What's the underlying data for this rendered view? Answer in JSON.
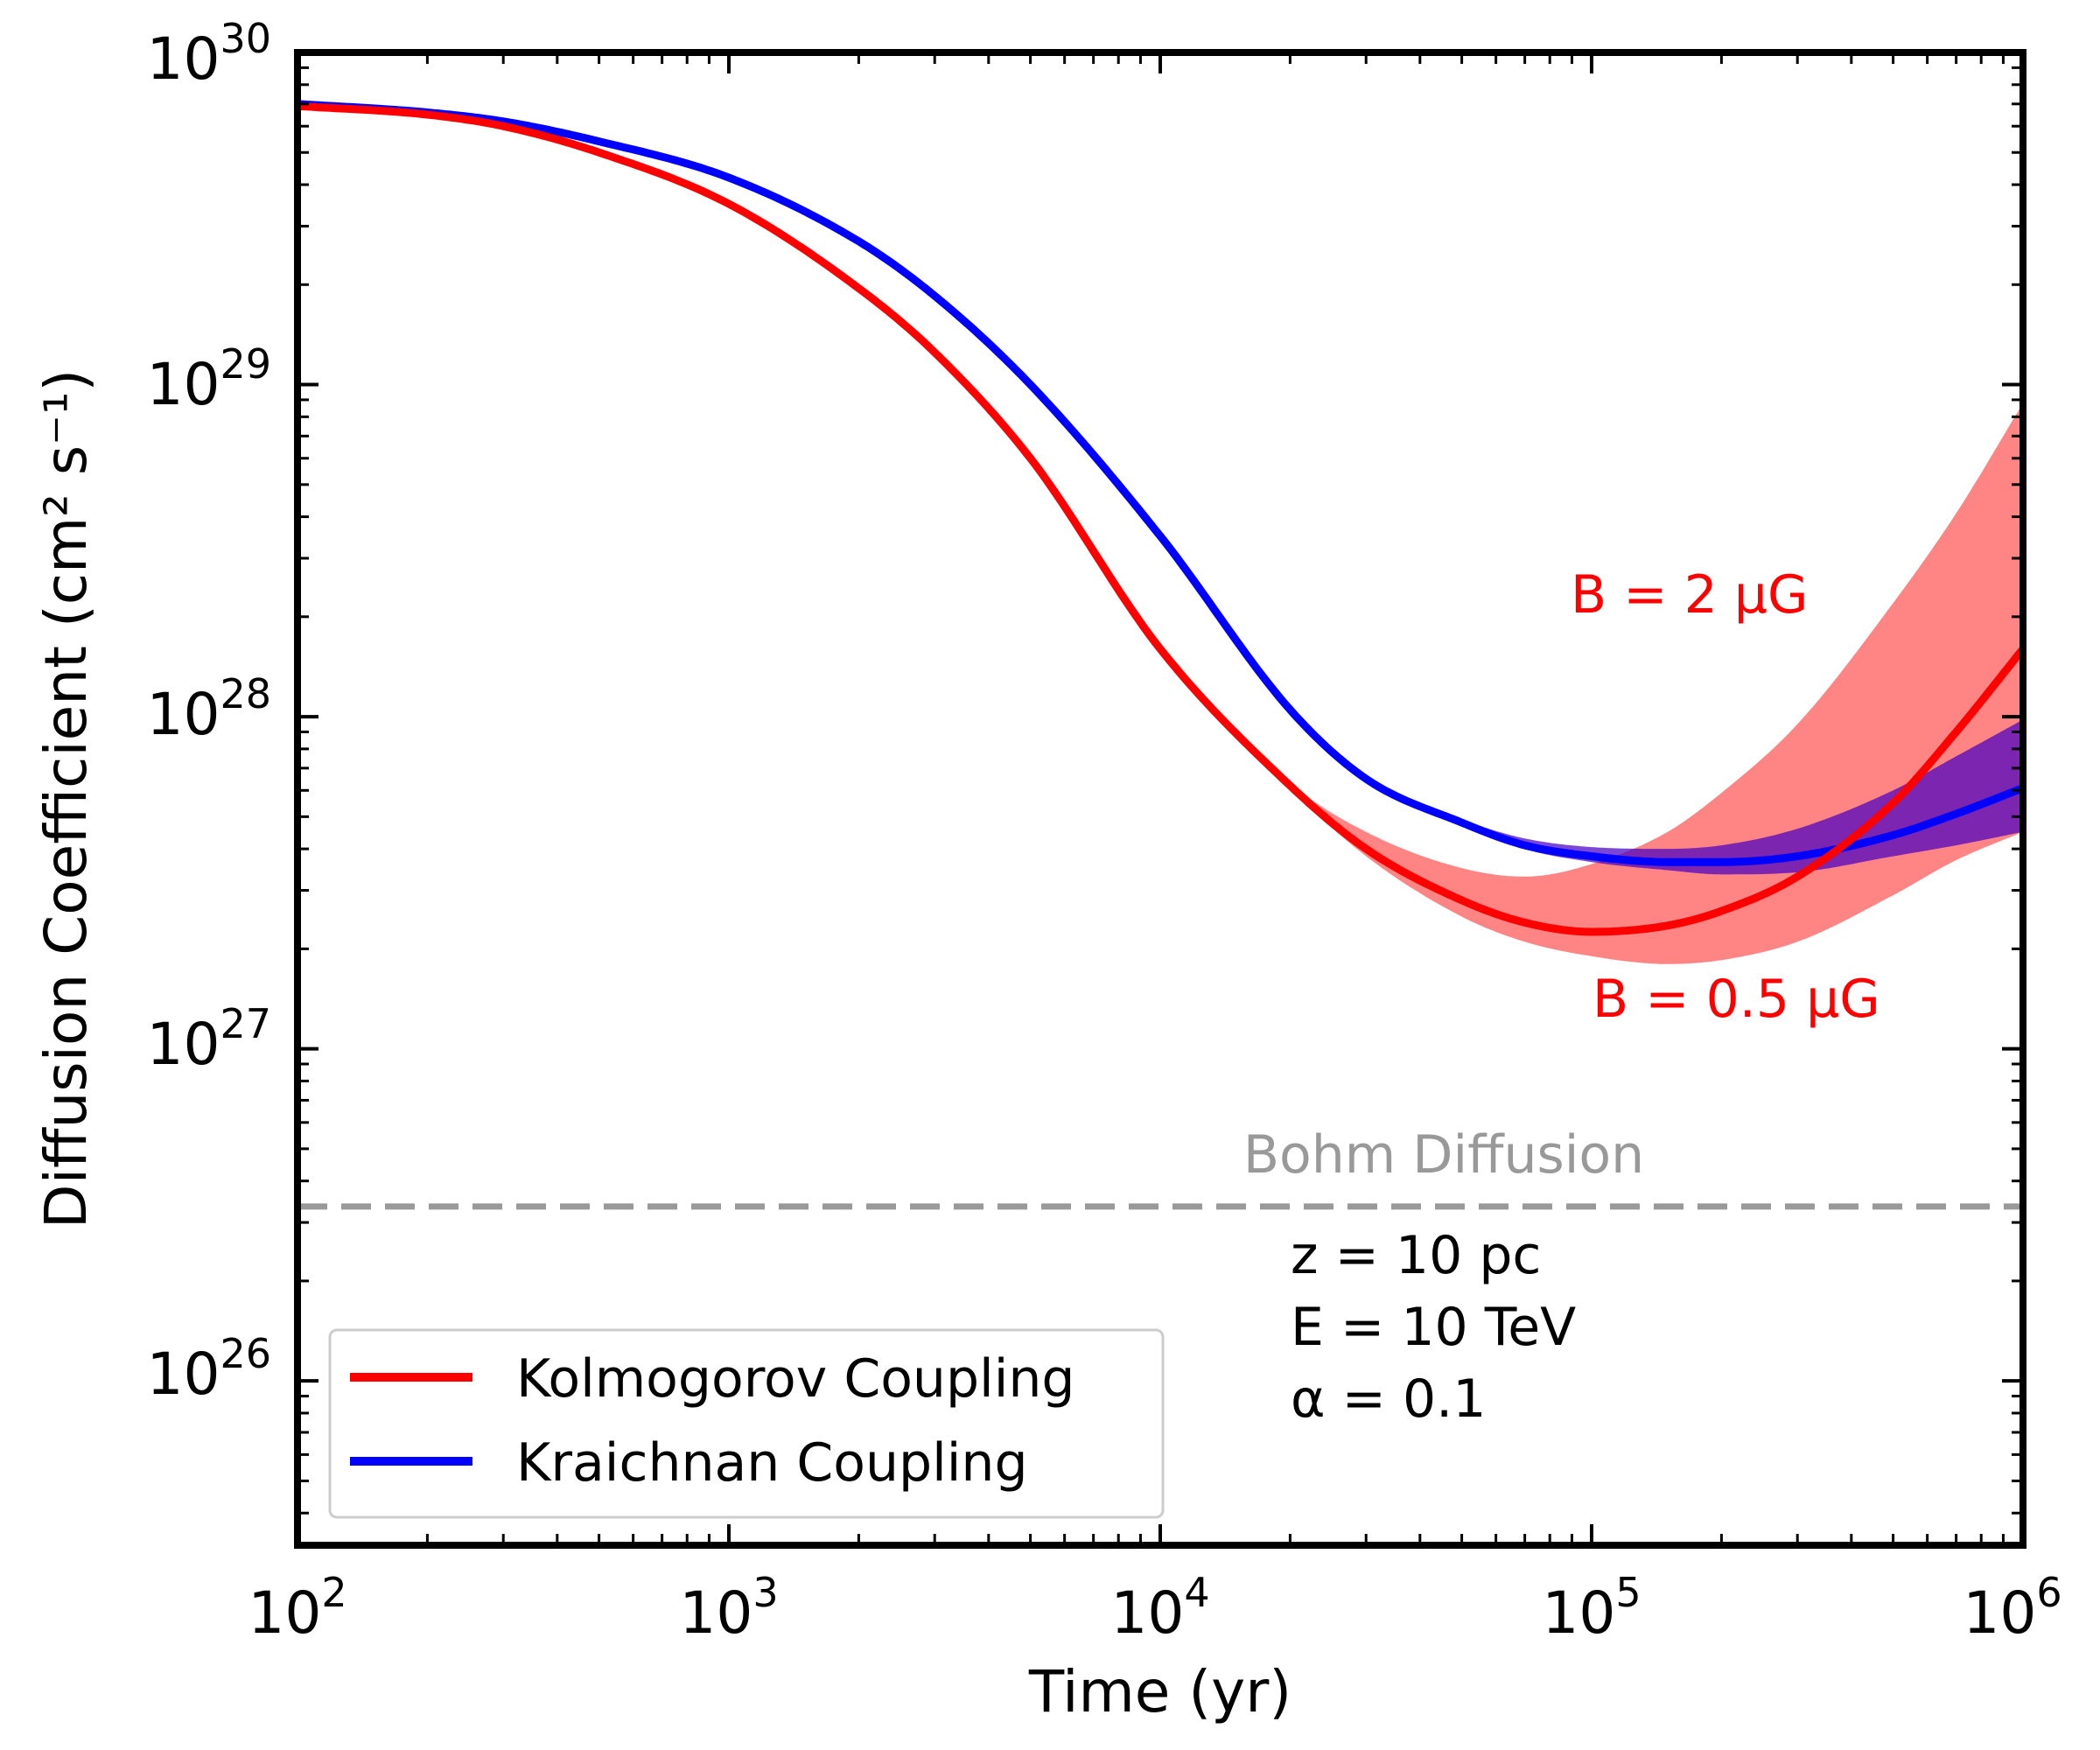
{
  "chart_data": {
    "type": "line",
    "xscale": "log",
    "yscale": "log",
    "xlim": [
      100,
      1000000
    ],
    "ylim": [
      3.2e+25,
      1e+30
    ],
    "xlabel": "Time (yr)",
    "ylabel": "Diffusion Coefficient (cm² s⁻¹)",
    "x_ticks": [
      {
        "base": "10",
        "exp": "2",
        "value": 100
      },
      {
        "base": "10",
        "exp": "3",
        "value": 1000
      },
      {
        "base": "10",
        "exp": "4",
        "value": 10000
      },
      {
        "base": "10",
        "exp": "5",
        "value": 100000
      },
      {
        "base": "10",
        "exp": "6",
        "value": 1000000
      }
    ],
    "y_ticks": [
      {
        "base": "10",
        "exp": "26",
        "value": 1e+26
      },
      {
        "base": "10",
        "exp": "27",
        "value": 1e+27
      },
      {
        "base": "10",
        "exp": "28",
        "value": 1e+28
      },
      {
        "base": "10",
        "exp": "29",
        "value": 1e+29
      },
      {
        "base": "10",
        "exp": "30",
        "value": 1e+30
      }
    ],
    "x": [
      100,
      200,
      300,
      500,
      1000,
      2000,
      3000,
      5000,
      10000,
      20000,
      30000,
      50000,
      70000,
      100000,
      150000,
      200000,
      300000,
      500000,
      700000,
      1000000
    ],
    "series": [
      {
        "name": "Kolmogorov Coupling",
        "color": "#ff0000",
        "values": [
          6.9e+29,
          6.5e+29,
          6e+29,
          5e+29,
          3.5e+29,
          1.95e+29,
          1.25e+29,
          6e+28,
          1.6e+28,
          6.2e+27,
          4e+27,
          2.8e+27,
          2.4e+27,
          2.25e+27,
          2.35e+27,
          2.6e+27,
          3.3e+27,
          5.5e+27,
          9e+27,
          1.6e+28
        ],
        "band": {
          "color": "#ff0000",
          "opacity": 0.48,
          "lower": [
            6.9e+29,
            6.5e+29,
            6e+29,
            5e+29,
            3.5e+29,
            1.95e+29,
            1.25e+29,
            6e+28,
            1.6e+28,
            6.1e+27,
            3.8e+27,
            2.5e+27,
            2.1e+27,
            1.9e+27,
            1.8e+27,
            1.85e+27,
            2.1e+27,
            2.9e+27,
            3.7e+27,
            4.5e+27
          ],
          "upper": [
            6.9e+29,
            6.5e+29,
            6e+29,
            5e+29,
            3.5e+29,
            1.95e+29,
            1.25e+29,
            6e+28,
            1.6e+28,
            6.3e+27,
            4.5e+27,
            3.5e+27,
            3.3e+27,
            3.6e+27,
            4.5e+27,
            5.9e+27,
            9.5e+27,
            2.2e+28,
            4.1e+28,
            8.8e+28
          ]
        }
      },
      {
        "name": "Kraichnan Coupling",
        "color": "#0000ff",
        "values": [
          7e+29,
          6.6e+29,
          6.2e+29,
          5.4e+29,
          4.2e+29,
          2.7e+29,
          1.85e+29,
          1e+29,
          3.5e+28,
          1.05e+28,
          6.5e+27,
          4.8e+27,
          4.1e+27,
          3.8e+27,
          3.65e+27,
          3.65e+27,
          3.8e+27,
          4.4e+27,
          5.1e+27,
          6.1e+27
        ],
        "band": {
          "color": "#4a00c0",
          "opacity": 0.72,
          "lower": [
            7e+29,
            6.6e+29,
            6.2e+29,
            5.4e+29,
            4.2e+29,
            2.7e+29,
            1.85e+29,
            1e+29,
            3.5e+28,
            1.05e+28,
            6.5e+27,
            4.8e+27,
            4e+27,
            3.65e+27,
            3.45e+27,
            3.35e+27,
            3.4e+27,
            3.8e+27,
            4.1e+27,
            4.5e+27
          ],
          "upper": [
            7e+29,
            6.6e+29,
            6.2e+29,
            5.4e+29,
            4.2e+29,
            2.7e+29,
            1.85e+29,
            1e+29,
            3.5e+28,
            1.05e+28,
            6.5e+27,
            4.9e+27,
            4.3e+27,
            4.05e+27,
            4e+27,
            4.1e+27,
            4.6e+27,
            6e+27,
            7.6e+27,
            9.8e+27
          ]
        }
      }
    ],
    "reference_line": {
      "name": "Bohm Diffusion",
      "y": 3.35e+26,
      "color": "#999999",
      "style": "dashed"
    },
    "annotations": {
      "band_upper": "B = 2 μG",
      "band_lower": "B = 0.5 μG",
      "params": [
        "z = 10 pc",
        "E = 10 TeV",
        "α = 0.1"
      ]
    },
    "legend": {
      "position": "bottom-left",
      "entries": [
        "Kolmogorov Coupling",
        "Kraichnan Coupling"
      ]
    },
    "grid": false
  }
}
